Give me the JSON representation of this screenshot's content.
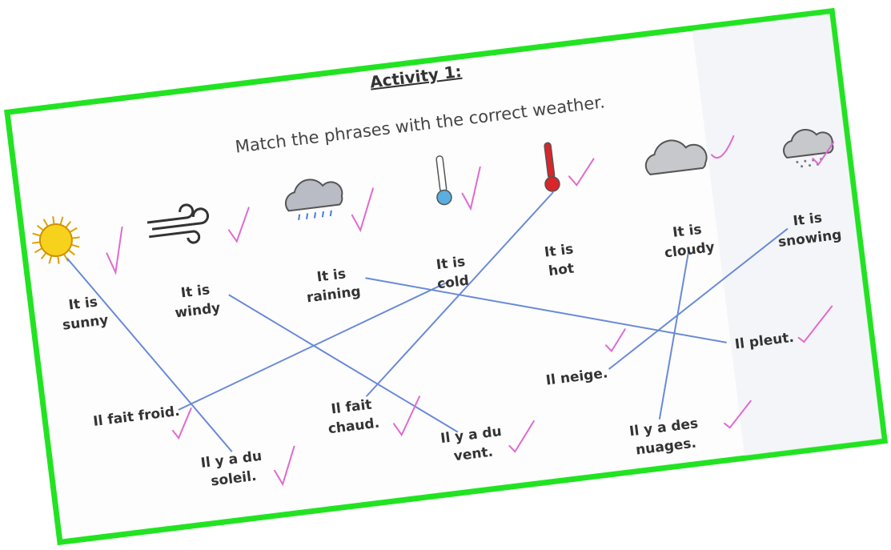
{
  "title": "Activity 1:",
  "instruction": "Match the phrases with the correct weather.",
  "english": [
    {
      "lines": [
        "It is",
        "sunny"
      ]
    },
    {
      "lines": [
        "It is",
        "windy"
      ]
    },
    {
      "lines": [
        "It is",
        "raining"
      ]
    },
    {
      "lines": [
        "It is",
        "cold"
      ]
    },
    {
      "lines": [
        "It is",
        "hot"
      ]
    },
    {
      "lines": [
        "It is",
        "cloudy"
      ]
    },
    {
      "lines": [
        "It is",
        "snowing"
      ]
    }
  ],
  "french": [
    {
      "lines": [
        "Il fait froid."
      ]
    },
    {
      "lines": [
        "Il y a du",
        "soleil."
      ]
    },
    {
      "lines": [
        "Il fait",
        "chaud."
      ]
    },
    {
      "lines": [
        "Il y a du",
        "vent."
      ]
    },
    {
      "lines": [
        "Il neige."
      ]
    },
    {
      "lines": [
        "Il y a des",
        "nuages."
      ]
    },
    {
      "lines": [
        "Il pleut."
      ]
    }
  ]
}
